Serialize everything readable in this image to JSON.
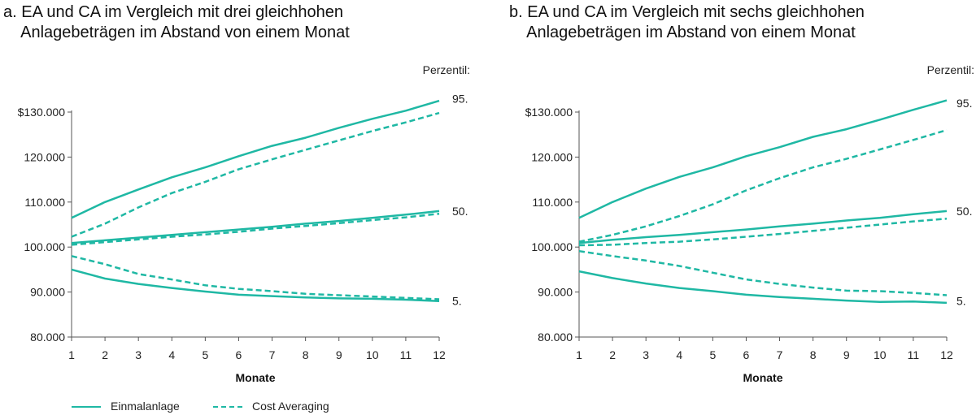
{
  "colors": {
    "series": "#1fb8a4",
    "axis": "#555555",
    "text": "#222222"
  },
  "legend": {
    "lump_sum": "Einmalanlage",
    "cost_averaging": "Cost Averaging"
  },
  "chart_data": [
    {
      "type": "line",
      "title": "a. EA und CA im Vergleich mit drei gleichhohen\n    Anlagebeträgen im Abstand von einem Monat",
      "xlabel": "Monate",
      "ylabel": "",
      "x": [
        1,
        2,
        3,
        4,
        5,
        6,
        7,
        8,
        9,
        10,
        11,
        12
      ],
      "ylim": [
        80000,
        130000
      ],
      "yticks": [
        80000,
        90000,
        100000,
        110000,
        120000,
        130000
      ],
      "ytick_labels": [
        "80.000",
        "90.000",
        "100.000",
        "110.000",
        "120.000",
        "$130.000"
      ],
      "percentile_header": "Perzentil:",
      "percentile_labels": [
        {
          "label": "95.",
          "value": 133000
        },
        {
          "label": "50.",
          "value": 108000
        },
        {
          "label": "5.",
          "value": 88000
        }
      ],
      "series": [
        {
          "name": "Einmalanlage",
          "percentile": "95.",
          "style": "solid",
          "values": [
            106500,
            110000,
            112800,
            115500,
            117700,
            120200,
            122500,
            124300,
            126500,
            128500,
            130300,
            132500
          ]
        },
        {
          "name": "Cost Averaging",
          "percentile": "95.",
          "style": "dashed",
          "values": [
            102300,
            105200,
            108800,
            112000,
            114500,
            117300,
            119500,
            121600,
            123700,
            125800,
            127700,
            129800
          ]
        },
        {
          "name": "Einmalanlage",
          "percentile": "50.",
          "style": "solid",
          "values": [
            100900,
            101500,
            102100,
            102700,
            103300,
            103900,
            104500,
            105200,
            105800,
            106500,
            107200,
            108000
          ]
        },
        {
          "name": "Cost Averaging",
          "percentile": "50.",
          "style": "dashed",
          "values": [
            100500,
            101100,
            101700,
            102300,
            102800,
            103400,
            104100,
            104700,
            105300,
            106000,
            106600,
            107400
          ]
        },
        {
          "name": "Cost Averaging",
          "percentile": "5.",
          "style": "dashed",
          "values": [
            98000,
            96200,
            94000,
            92800,
            91500,
            90700,
            90200,
            89600,
            89300,
            89000,
            88700,
            88400
          ]
        },
        {
          "name": "Einmalanlage",
          "percentile": "5.",
          "style": "solid",
          "values": [
            95000,
            93000,
            91800,
            90900,
            90100,
            89400,
            89100,
            88800,
            88600,
            88500,
            88300,
            88000
          ]
        }
      ]
    },
    {
      "type": "line",
      "title": "b. EA und CA im Vergleich mit sechs gleichhohen\n    Anlagebeträgen im Abstand von einem Monat",
      "xlabel": "Monate",
      "ylabel": "",
      "x": [
        1,
        2,
        3,
        4,
        5,
        6,
        7,
        8,
        9,
        10,
        11,
        12
      ],
      "ylim": [
        80000,
        130000
      ],
      "yticks": [
        80000,
        90000,
        100000,
        110000,
        120000,
        130000
      ],
      "ytick_labels": [
        "80.000",
        "90.000",
        "100.000",
        "110.000",
        "120.000",
        "$130.000"
      ],
      "percentile_header": "Perzentil:",
      "percentile_labels": [
        {
          "label": "95.",
          "value": 132000
        },
        {
          "label": "50.",
          "value": 108000
        },
        {
          "label": "5.",
          "value": 88000
        }
      ],
      "series": [
        {
          "name": "Einmalanlage",
          "percentile": "95.",
          "style": "solid",
          "values": [
            106500,
            110000,
            113000,
            115600,
            117700,
            120200,
            122200,
            124500,
            126200,
            128300,
            130500,
            132600
          ]
        },
        {
          "name": "Cost Averaging",
          "percentile": "95.",
          "style": "dashed",
          "values": [
            101200,
            102700,
            104600,
            106900,
            109500,
            112600,
            115300,
            117700,
            119600,
            121700,
            123800,
            126000
          ]
        },
        {
          "name": "Einmalanlage",
          "percentile": "50.",
          "style": "solid",
          "values": [
            100900,
            101600,
            102200,
            102700,
            103300,
            103900,
            104600,
            105200,
            105900,
            106500,
            107300,
            108000
          ]
        },
        {
          "name": "Cost Averaging",
          "percentile": "50.",
          "style": "dashed",
          "values": [
            100400,
            100500,
            100900,
            101200,
            101700,
            102300,
            102900,
            103600,
            104300,
            105000,
            105700,
            106300
          ]
        },
        {
          "name": "Cost Averaging",
          "percentile": "5.",
          "style": "dashed",
          "values": [
            99100,
            98000,
            97000,
            95800,
            94300,
            92800,
            91800,
            91000,
            90300,
            90200,
            89800,
            89300
          ]
        },
        {
          "name": "Einmalanlage",
          "percentile": "5.",
          "style": "solid",
          "values": [
            94600,
            93100,
            91900,
            90900,
            90200,
            89400,
            88900,
            88500,
            88100,
            87800,
            87900,
            87600
          ]
        }
      ]
    }
  ]
}
